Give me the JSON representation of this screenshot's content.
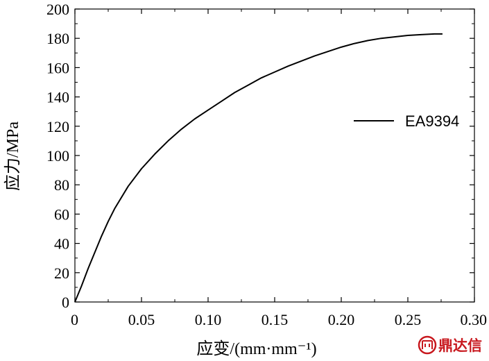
{
  "chart_data": {
    "type": "line",
    "title": "",
    "xlabel": "应变/(mm·mm⁻¹)",
    "ylabel": "应力/MPa",
    "xlim": [
      0,
      0.3
    ],
    "ylim": [
      0,
      200
    ],
    "x_ticks": [
      0,
      0.05,
      0.1,
      0.15,
      0.2,
      0.25,
      0.3
    ],
    "x_tick_labels": [
      "0",
      "0.05",
      "0.10",
      "0.15",
      "0.20",
      "0.25",
      "0.30"
    ],
    "y_ticks": [
      0,
      20,
      40,
      60,
      80,
      100,
      120,
      140,
      160,
      180,
      200
    ],
    "y_tick_labels": [
      "0",
      "20",
      "40",
      "60",
      "80",
      "100",
      "120",
      "140",
      "160",
      "180",
      "200"
    ],
    "grid": false,
    "legend_position": "right",
    "series": [
      {
        "name": "EA9394",
        "color": "#000000",
        "x": [
          0,
          0.005,
          0.01,
          0.015,
          0.02,
          0.025,
          0.03,
          0.04,
          0.05,
          0.06,
          0.07,
          0.08,
          0.09,
          0.1,
          0.11,
          0.12,
          0.13,
          0.14,
          0.15,
          0.16,
          0.17,
          0.18,
          0.19,
          0.2,
          0.21,
          0.22,
          0.23,
          0.24,
          0.25,
          0.26,
          0.27,
          0.276
        ],
        "y": [
          0,
          11,
          23,
          34,
          45,
          55,
          64,
          79,
          91,
          101,
          110,
          118,
          125,
          131,
          137,
          143,
          148,
          153,
          157,
          161,
          164.5,
          168,
          171,
          174,
          176.5,
          178.5,
          180,
          181,
          182,
          182.5,
          183,
          183
        ]
      }
    ]
  },
  "watermark": {
    "text": "鼎达信",
    "color": "#c8181e"
  }
}
